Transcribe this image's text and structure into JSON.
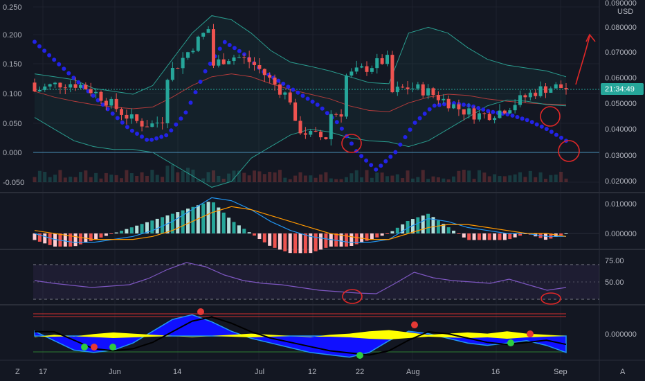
{
  "chart_data": {
    "type": "candlestick",
    "currency": "USD",
    "last_price": "0.0561",
    "countdown": "21:34:49",
    "x_ticks": [
      "17",
      "Jun",
      "14",
      "Jul",
      "12",
      "22",
      "Aug",
      "16",
      "Sep"
    ],
    "footer": {
      "left_icon": "Z",
      "right_icon": "A"
    },
    "left_axis_ticks": [
      "0.250",
      "0.200",
      "0.150",
      "0.100",
      "0.050",
      "0.000",
      "-0.050"
    ],
    "right_axis_ticks": [
      "0.090000",
      "0.080000",
      "0.070000",
      "0.060000",
      "0.050000",
      "0.040000",
      "0.030000",
      "0.020000"
    ],
    "price_overlay": {
      "bollinger_upper": [
        0.135,
        0.13,
        0.125,
        0.11,
        0.105,
        0.1,
        0.115,
        0.16,
        0.205,
        0.235,
        0.228,
        0.205,
        0.175,
        0.155,
        0.148,
        0.14,
        0.13,
        0.12,
        0.118,
        0.205,
        0.215,
        0.205,
        0.18,
        0.16,
        0.15,
        0.145,
        0.14,
        0.13
      ],
      "bollinger_mid": [
        0.105,
        0.095,
        0.088,
        0.082,
        0.078,
        0.075,
        0.078,
        0.095,
        0.115,
        0.13,
        0.135,
        0.13,
        0.118,
        0.108,
        0.1,
        0.092,
        0.08,
        0.072,
        0.07,
        0.085,
        0.095,
        0.1,
        0.098,
        0.092,
        0.088,
        0.085,
        0.083,
        0.082
      ],
      "bollinger_lower": [
        0.06,
        0.04,
        0.02,
        0.01,
        0.005,
        0.005,
        0.0,
        -0.02,
        -0.04,
        -0.06,
        -0.05,
        -0.01,
        0.01,
        0.03,
        0.04,
        0.035,
        0.025,
        0.02,
        0.018,
        0.01,
        0.02,
        0.04,
        0.06,
        0.08,
        0.09,
        0.088,
        0.082,
        0.08
      ],
      "sar": [
        0.19,
        0.16,
        0.13,
        0.1,
        0.07,
        0.04,
        0.02,
        0.03,
        0.07,
        0.14,
        0.19,
        0.17,
        0.14,
        0.12,
        0.1,
        0.08,
        0.05,
        0.0,
        -0.03,
        0.0,
        0.05,
        0.08,
        0.085,
        0.08,
        0.07,
        0.065,
        0.055,
        0.04,
        0.02
      ]
    },
    "macd": {
      "macd_line": [
        0.0,
        -0.002,
        -0.003,
        -0.003,
        -0.002,
        -0.001,
        0.001,
        0.004,
        0.008,
        0.012,
        0.011,
        0.008,
        0.004,
        0.001,
        -0.001,
        -0.002,
        -0.003,
        -0.003,
        -0.002,
        0.002,
        0.005,
        0.004,
        0.002,
        0.001,
        0.0,
        0.0,
        -0.001,
        -0.001
      ],
      "signal_line": [
        0.001,
        0.0,
        -0.001,
        -0.002,
        -0.002,
        -0.002,
        -0.001,
        0.001,
        0.004,
        0.007,
        0.009,
        0.008,
        0.006,
        0.004,
        0.002,
        0.0,
        -0.001,
        -0.002,
        -0.002,
        0.0,
        0.002,
        0.003,
        0.003,
        0.002,
        0.001,
        0.0,
        0.0,
        -0.001
      ]
    },
    "rsi": {
      "levels": [
        "75.00",
        "50.00"
      ],
      "values": [
        52,
        48,
        45,
        42,
        44,
        46,
        55,
        68,
        78,
        72,
        60,
        52,
        48,
        46,
        42,
        38,
        36,
        34,
        33,
        48,
        64,
        56,
        52,
        50,
        48,
        54,
        46,
        38,
        42
      ]
    },
    "oscillator": {
      "zero_label": "0.000000",
      "blue_wave": [
        0.2,
        -0.2,
        -0.6,
        -0.7,
        -0.6,
        -0.3,
        0.2,
        0.7,
        0.9,
        0.6,
        0.2,
        -0.1,
        -0.3,
        -0.5,
        -0.7,
        -0.8,
        -0.9,
        -0.7,
        -0.2,
        0.2,
        0.1,
        -0.1,
        -0.3,
        -0.4,
        -0.3,
        -0.2,
        -0.4,
        -0.7
      ],
      "yellow_wave": [
        -0.05,
        0.05,
        -0.02,
        0.08,
        0.15,
        0.1,
        0.05,
        0.0,
        -0.05,
        0.0,
        0.05,
        0.1,
        0.05,
        0.0,
        -0.05,
        0.05,
        0.1,
        0.2,
        0.25,
        0.15,
        0.05,
        0.1,
        0.15,
        0.1,
        0.2,
        0.1,
        0.05,
        0.0
      ]
    }
  }
}
